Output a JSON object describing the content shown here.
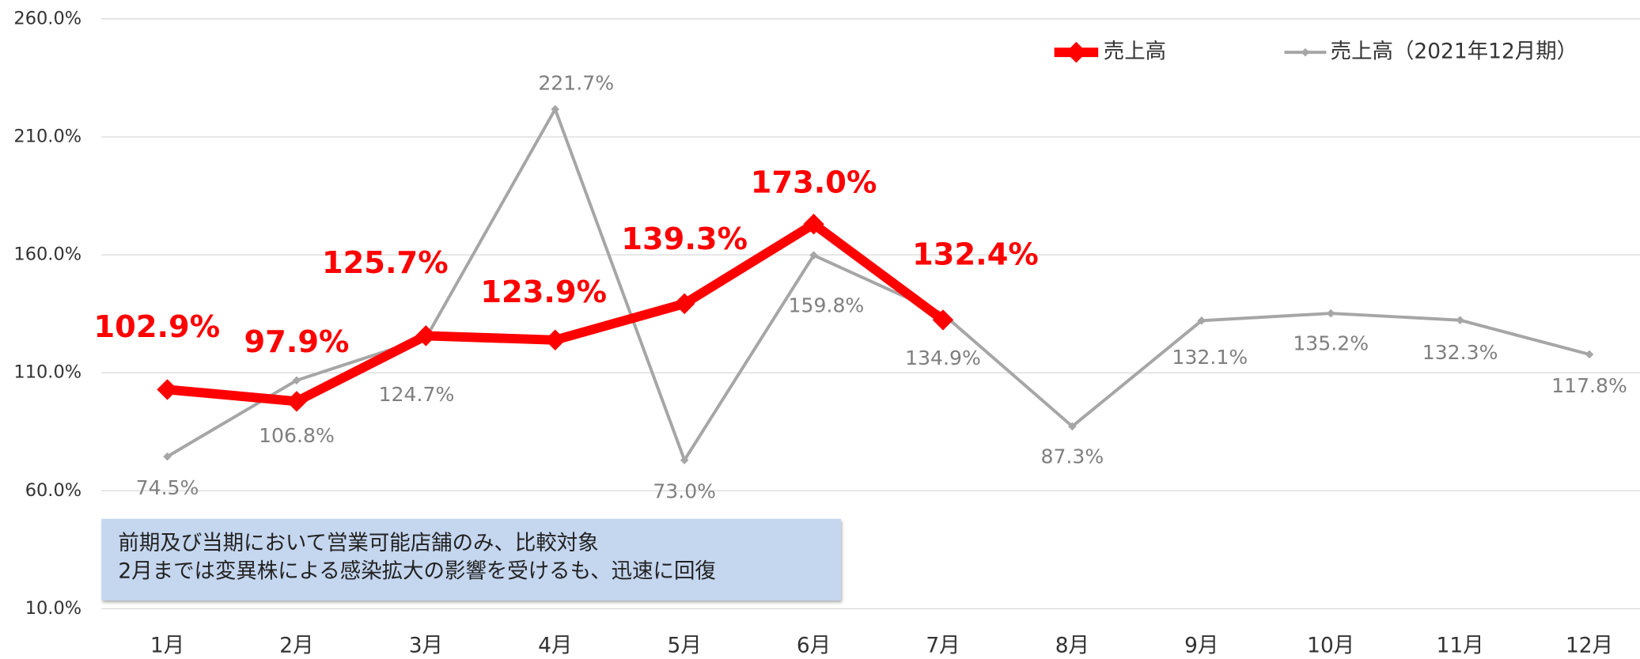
{
  "chart_data": {
    "type": "line",
    "categories": [
      "1月",
      "2月",
      "3月",
      "4月",
      "5月",
      "6月",
      "7月",
      "8月",
      "9月",
      "10月",
      "11月",
      "12月"
    ],
    "series": [
      {
        "name": "売上高",
        "color": "#ff0000",
        "values": [
          102.9,
          97.9,
          125.7,
          123.9,
          139.3,
          173.0,
          132.4,
          null,
          null,
          null,
          null,
          null
        ],
        "value_labels": [
          "102.9%",
          "97.9%",
          "125.7%",
          "123.9%",
          "139.3%",
          "173.0%",
          "132.4%",
          null,
          null,
          null,
          null,
          null
        ]
      },
      {
        "name": "売上高（2021年12月期）",
        "color": "#a6a6a6",
        "values": [
          74.5,
          106.8,
          124.7,
          221.7,
          73.0,
          159.8,
          134.9,
          87.3,
          132.1,
          135.2,
          132.3,
          117.8
        ],
        "value_labels": [
          "74.5%",
          "106.8%",
          "124.7%",
          "221.7%",
          "73.0%",
          "159.8%",
          "134.9%",
          "87.3%",
          "132.1%",
          "135.2%",
          "132.3%",
          "117.8%"
        ]
      }
    ],
    "ylim": [
      10,
      260
    ],
    "yticks": [
      {
        "value": 10,
        "label": "10.0%"
      },
      {
        "value": 60,
        "label": "60.0%"
      },
      {
        "value": 110,
        "label": "110.0%"
      },
      {
        "value": 160,
        "label": "160.0%"
      },
      {
        "value": 210,
        "label": "210.0%"
      },
      {
        "value": 260,
        "label": "260.0%"
      }
    ],
    "grid": true,
    "annotation": [
      "前期及び当期において営業可能店舗のみ、比較対象",
      "2月までは変異株による感染拡大の影響を受けるも、迅速に回復"
    ]
  }
}
